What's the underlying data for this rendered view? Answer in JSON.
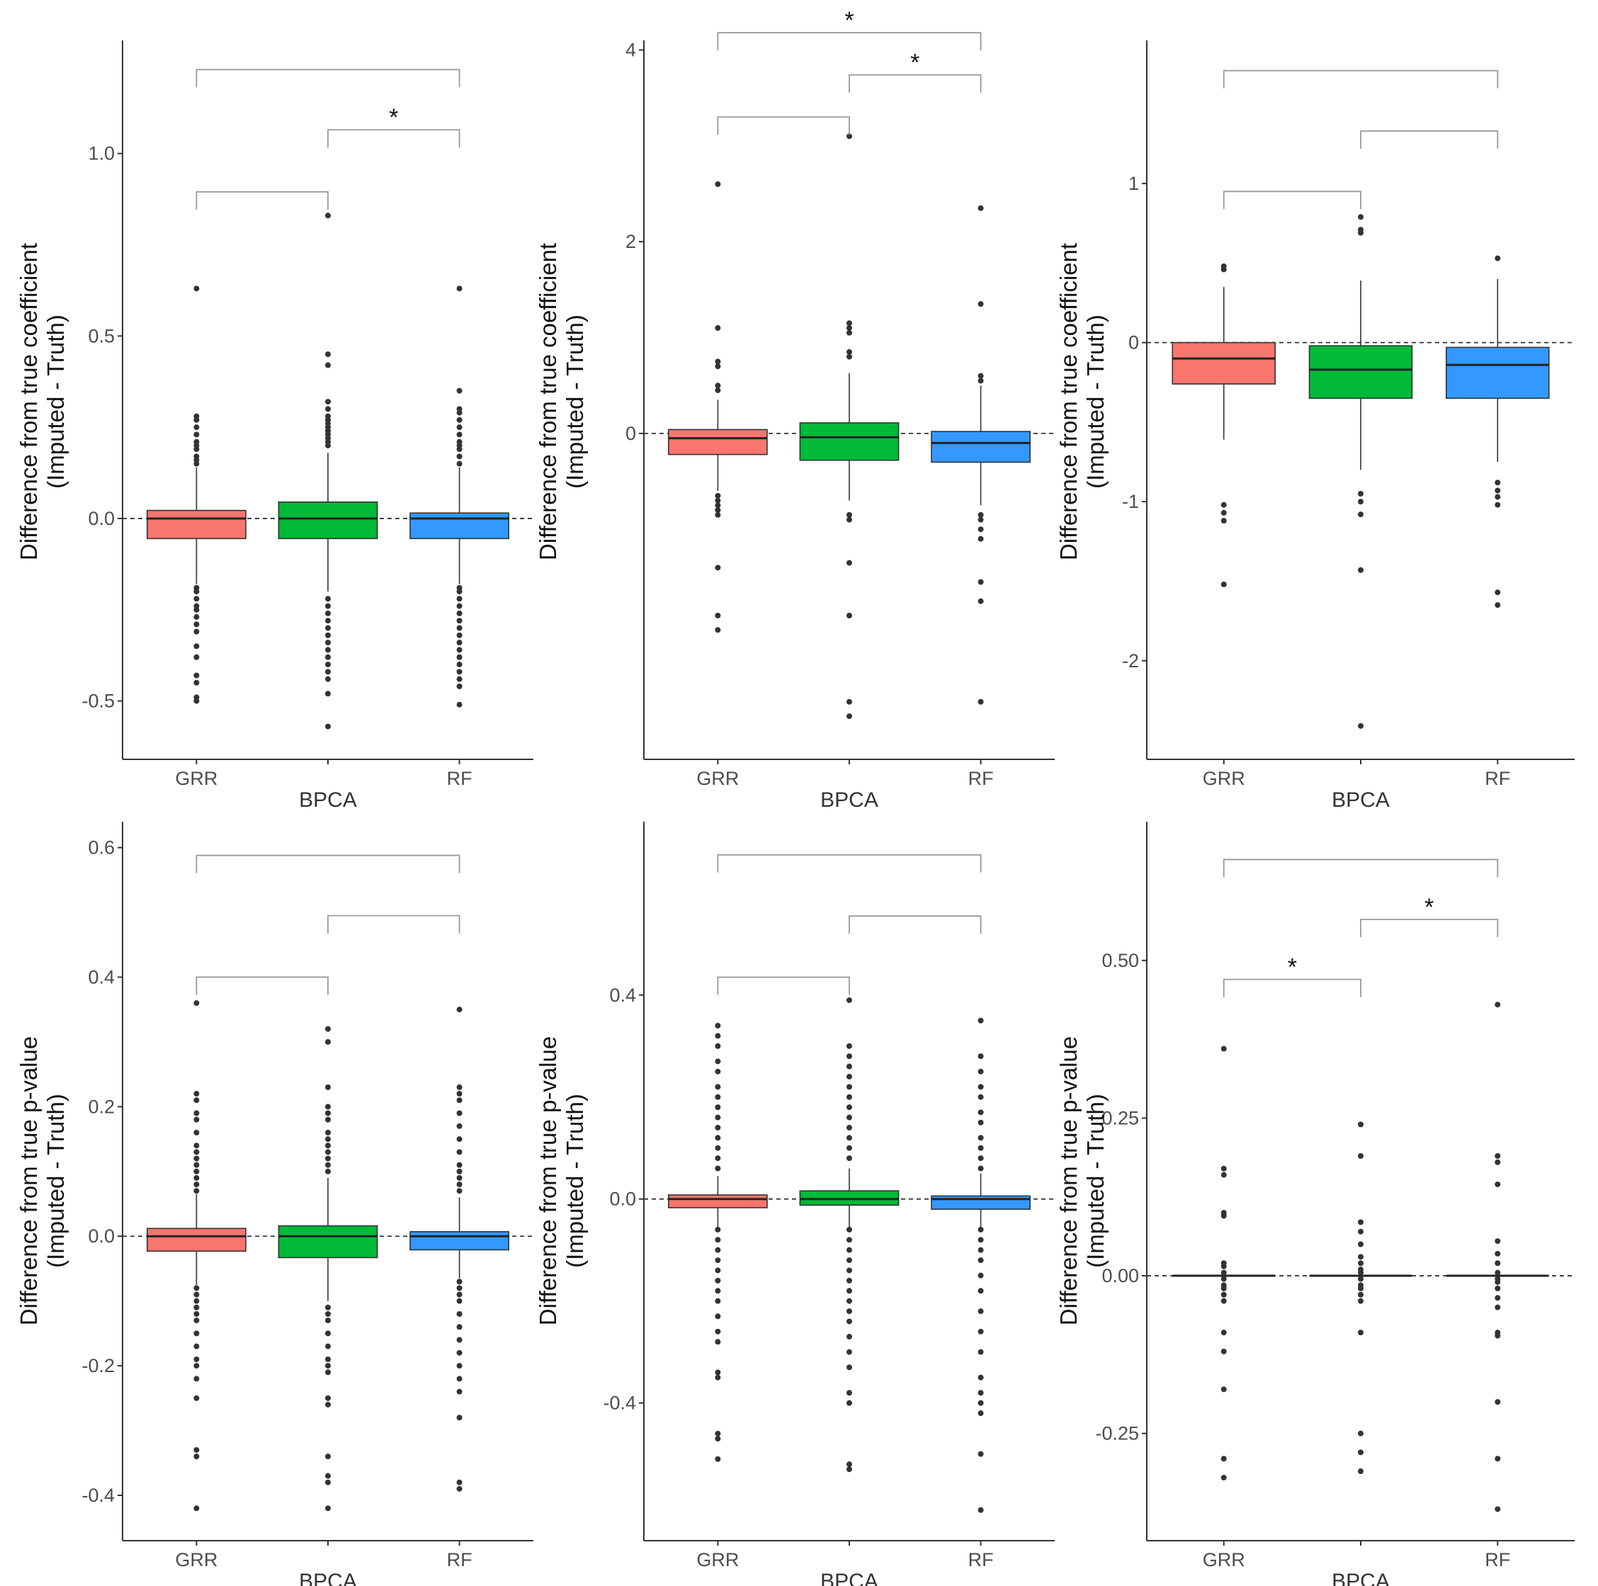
{
  "figure": {
    "categories": [
      "GRR",
      "BPCA",
      "RF"
    ],
    "colors": {
      "GRR": "#F8766D",
      "BPCA": "#00BA38",
      "RF": "#3399FF",
      "outlier": "#333333",
      "bracket": "#999999",
      "axis": "#333333",
      "reference_line": "#333333"
    }
  },
  "chart_data": [
    {
      "type": "box",
      "panel": "top-left",
      "ylabel": [
        "Difference from true coefficient",
        "(Imputed - Truth)"
      ],
      "xlabel": "BPCA",
      "categories": [
        "GRR",
        "BPCA",
        "RF"
      ],
      "ylim": [
        -0.66,
        1.31
      ],
      "yticks": [
        -0.5,
        0.0,
        0.5,
        1.0
      ],
      "ytick_labels": [
        "-0.5",
        "0.0",
        "0.5",
        "1.0"
      ],
      "reference_line": 0,
      "boxes": [
        {
          "name": "GRR",
          "q1": -0.055,
          "median": 0.0,
          "q3": 0.022,
          "whisker_low": -0.18,
          "whisker_high": 0.14,
          "outliers": [
            0.63,
            0.28,
            0.27,
            0.25,
            0.23,
            0.21,
            0.2,
            0.19,
            0.17,
            0.16,
            0.15,
            -0.19,
            -0.2,
            -0.22,
            -0.24,
            -0.25,
            -0.27,
            -0.29,
            -0.31,
            -0.35,
            -0.38,
            -0.43,
            -0.45,
            -0.49,
            -0.5
          ]
        },
        {
          "name": "BPCA",
          "q1": -0.055,
          "median": 0.0,
          "q3": 0.045,
          "whisker_low": -0.2,
          "whisker_high": 0.18,
          "outliers": [
            0.83,
            0.45,
            0.42,
            0.32,
            0.3,
            0.28,
            0.27,
            0.26,
            0.25,
            0.24,
            0.23,
            0.22,
            0.21,
            0.2,
            -0.22,
            -0.24,
            -0.26,
            -0.28,
            -0.3,
            -0.32,
            -0.34,
            -0.36,
            -0.38,
            -0.4,
            -0.42,
            -0.44,
            -0.48,
            -0.57
          ]
        },
        {
          "name": "RF",
          "q1": -0.055,
          "median": 0.0,
          "q3": 0.015,
          "whisker_low": -0.18,
          "whisker_high": 0.14,
          "outliers": [
            0.63,
            0.35,
            0.3,
            0.29,
            0.27,
            0.25,
            0.23,
            0.21,
            0.2,
            0.19,
            0.17,
            0.15,
            -0.19,
            -0.2,
            -0.22,
            -0.24,
            -0.26,
            -0.28,
            -0.3,
            -0.32,
            -0.34,
            -0.36,
            -0.38,
            -0.4,
            -0.42,
            -0.44,
            -0.46,
            -0.51
          ]
        }
      ],
      "brackets": [
        {
          "from": "GRR",
          "to": "BPCA",
          "y": 0.895,
          "label": ""
        },
        {
          "from": "BPCA",
          "to": "RF",
          "y": 1.065,
          "label": "*"
        },
        {
          "from": "GRR",
          "to": "RF",
          "y": 1.23,
          "label": ""
        }
      ]
    },
    {
      "type": "box",
      "panel": "top-middle",
      "ylabel": [
        "Difference from true coefficient",
        "(Imputed - Truth)"
      ],
      "xlabel": "BPCA",
      "categories": [
        "GRR",
        "BPCA",
        "RF"
      ],
      "ylim": [
        -3.4,
        4.1
      ],
      "yticks": [
        0,
        2,
        4
      ],
      "ytick_labels": [
        "0",
        "2",
        "4"
      ],
      "reference_line": 0,
      "boxes": [
        {
          "name": "GRR",
          "q1": -0.22,
          "median": -0.05,
          "q3": 0.04,
          "whisker_low": -0.6,
          "whisker_high": 0.35,
          "outliers": [
            2.6,
            1.1,
            0.75,
            0.7,
            0.5,
            0.45,
            -0.65,
            -0.7,
            -0.75,
            -0.8,
            -0.85,
            -1.4,
            -1.9,
            -2.05
          ]
        },
        {
          "name": "BPCA",
          "q1": -0.28,
          "median": -0.04,
          "q3": 0.11,
          "whisker_low": -0.7,
          "whisker_high": 0.63,
          "outliers": [
            3.1,
            1.15,
            1.1,
            1.05,
            0.85,
            0.8,
            -0.85,
            -0.9,
            -1.35,
            -1.9,
            -2.8,
            -2.95
          ]
        },
        {
          "name": "RF",
          "q1": -0.3,
          "median": -0.1,
          "q3": 0.02,
          "whisker_low": -0.75,
          "whisker_high": 0.5,
          "outliers": [
            2.35,
            1.35,
            0.6,
            0.55,
            -0.85,
            -0.9,
            -1.0,
            -1.1,
            -1.55,
            -1.75,
            -2.8
          ]
        }
      ],
      "brackets": [
        {
          "from": "GRR",
          "to": "BPCA",
          "y": 3.3,
          "label": ""
        },
        {
          "from": "BPCA",
          "to": "RF",
          "y": 3.74,
          "label": "*"
        },
        {
          "from": "GRR",
          "to": "RF",
          "y": 4.18,
          "label": "*"
        }
      ]
    },
    {
      "type": "box",
      "panel": "top-right",
      "ylabel": [
        "Difference from true coefficient",
        "(Imputed - Truth)"
      ],
      "xlabel": "BPCA",
      "categories": [
        "GRR",
        "BPCA",
        "RF"
      ],
      "ylim": [
        -2.62,
        1.9
      ],
      "yticks": [
        -2,
        -1,
        0,
        1
      ],
      "ytick_labels": [
        "-2",
        "-1",
        "0",
        "1"
      ],
      "reference_line": 0,
      "boxes": [
        {
          "name": "GRR",
          "q1": -0.26,
          "median": -0.1,
          "q3": 0.0,
          "whisker_low": -0.61,
          "whisker_high": 0.35,
          "outliers": [
            0.48,
            0.46,
            -1.02,
            -1.07,
            -1.12,
            -1.52
          ]
        },
        {
          "name": "BPCA",
          "q1": -0.35,
          "median": -0.17,
          "q3": -0.02,
          "whisker_low": -0.8,
          "whisker_high": 0.39,
          "outliers": [
            0.79,
            0.71,
            0.69,
            -0.95,
            -1.0,
            -1.08,
            -1.43,
            -2.41
          ]
        },
        {
          "name": "RF",
          "q1": -0.35,
          "median": -0.14,
          "q3": -0.03,
          "whisker_low": -0.75,
          "whisker_high": 0.4,
          "outliers": [
            0.53,
            -0.88,
            -0.93,
            -0.97,
            -1.02,
            -1.57,
            -1.65
          ]
        }
      ],
      "brackets": [
        {
          "from": "GRR",
          "to": "BPCA",
          "y": 0.95,
          "label": ""
        },
        {
          "from": "BPCA",
          "to": "RF",
          "y": 1.33,
          "label": ""
        },
        {
          "from": "GRR",
          "to": "RF",
          "y": 1.71,
          "label": ""
        }
      ]
    },
    {
      "type": "box",
      "panel": "bottom-left",
      "ylabel": [
        "Difference from true p-value",
        "(Imputed - Truth)"
      ],
      "xlabel": "BPCA",
      "categories": [
        "GRR",
        "BPCA",
        "RF"
      ],
      "ylim": [
        -0.47,
        0.64
      ],
      "yticks": [
        -0.4,
        -0.2,
        0.0,
        0.2,
        0.4,
        0.6
      ],
      "ytick_labels": [
        "-0.4",
        "-0.2",
        "0.0",
        "0.2",
        "0.4",
        "0.6"
      ],
      "reference_line": 0,
      "boxes": [
        {
          "name": "GRR",
          "q1": -0.023,
          "median": 0.0,
          "q3": 0.012,
          "whisker_low": -0.075,
          "whisker_high": 0.065,
          "outliers": [
            0.36,
            0.22,
            0.21,
            0.19,
            0.18,
            0.16,
            0.14,
            0.13,
            0.12,
            0.11,
            0.1,
            0.09,
            0.08,
            0.07,
            -0.08,
            -0.09,
            -0.1,
            -0.11,
            -0.12,
            -0.13,
            -0.15,
            -0.17,
            -0.19,
            -0.2,
            -0.22,
            -0.25,
            -0.33,
            -0.34,
            -0.42
          ]
        },
        {
          "name": "BPCA",
          "q1": -0.033,
          "median": 0.0,
          "q3": 0.016,
          "whisker_low": -0.1,
          "whisker_high": 0.09,
          "outliers": [
            0.32,
            0.3,
            0.23,
            0.2,
            0.19,
            0.18,
            0.16,
            0.15,
            0.14,
            0.13,
            0.12,
            0.11,
            0.1,
            -0.11,
            -0.12,
            -0.13,
            -0.15,
            -0.17,
            -0.19,
            -0.2,
            -0.21,
            -0.25,
            -0.26,
            -0.34,
            -0.37,
            -0.38,
            -0.42
          ]
        },
        {
          "name": "RF",
          "q1": -0.021,
          "median": 0.0,
          "q3": 0.007,
          "whisker_low": -0.065,
          "whisker_high": 0.06,
          "outliers": [
            0.35,
            0.23,
            0.22,
            0.21,
            0.19,
            0.17,
            0.15,
            0.13,
            0.11,
            0.1,
            0.09,
            0.08,
            0.07,
            -0.07,
            -0.08,
            -0.09,
            -0.1,
            -0.12,
            -0.14,
            -0.16,
            -0.18,
            -0.2,
            -0.22,
            -0.24,
            -0.28,
            -0.38,
            -0.39
          ]
        }
      ],
      "brackets": [
        {
          "from": "GRR",
          "to": "BPCA",
          "y": 0.4,
          "label": ""
        },
        {
          "from": "BPCA",
          "to": "RF",
          "y": 0.495,
          "label": ""
        },
        {
          "from": "GRR",
          "to": "RF",
          "y": 0.588,
          "label": ""
        }
      ]
    },
    {
      "type": "box",
      "panel": "bottom-middle",
      "ylabel": [
        "Difference from true p-value",
        "(Imputed - Truth)"
      ],
      "xlabel": "BPCA",
      "categories": [
        "GRR",
        "BPCA",
        "RF"
      ],
      "ylim": [
        -0.67,
        0.74
      ],
      "yticks": [
        -0.4,
        0.0,
        0.4
      ],
      "ytick_labels": [
        "-0.4",
        "0.0",
        "0.4"
      ],
      "reference_line": 0,
      "boxes": [
        {
          "name": "GRR",
          "q1": -0.017,
          "median": 0.0,
          "q3": 0.008,
          "whisker_low": -0.055,
          "whisker_high": 0.045,
          "outliers": [
            0.34,
            0.32,
            0.3,
            0.27,
            0.25,
            0.22,
            0.2,
            0.18,
            0.16,
            0.14,
            0.12,
            0.1,
            0.08,
            0.06,
            -0.06,
            -0.08,
            -0.1,
            -0.12,
            -0.14,
            -0.16,
            -0.18,
            -0.2,
            -0.23,
            -0.26,
            -0.28,
            -0.34,
            -0.35,
            -0.46,
            -0.47,
            -0.51
          ]
        },
        {
          "name": "BPCA",
          "q1": -0.012,
          "median": 0.0,
          "q3": 0.016,
          "whisker_low": -0.055,
          "whisker_high": 0.06,
          "outliers": [
            0.39,
            0.3,
            0.28,
            0.26,
            0.24,
            0.22,
            0.2,
            0.18,
            0.16,
            0.14,
            0.12,
            0.1,
            0.08,
            -0.06,
            -0.08,
            -0.1,
            -0.12,
            -0.14,
            -0.16,
            -0.18,
            -0.2,
            -0.22,
            -0.24,
            -0.27,
            -0.3,
            -0.33,
            -0.38,
            -0.4,
            -0.52,
            -0.53
          ]
        },
        {
          "name": "RF",
          "q1": -0.02,
          "median": 0.0,
          "q3": 0.006,
          "whisker_low": -0.06,
          "whisker_high": 0.05,
          "outliers": [
            0.35,
            0.28,
            0.25,
            0.22,
            0.2,
            0.17,
            0.15,
            0.12,
            0.1,
            0.08,
            0.06,
            -0.06,
            -0.08,
            -0.1,
            -0.12,
            -0.15,
            -0.18,
            -0.22,
            -0.26,
            -0.3,
            -0.35,
            -0.38,
            -0.4,
            -0.42,
            -0.5,
            -0.61
          ]
        }
      ],
      "brackets": [
        {
          "from": "GRR",
          "to": "BPCA",
          "y": 0.435,
          "label": ""
        },
        {
          "from": "BPCA",
          "to": "RF",
          "y": 0.555,
          "label": ""
        },
        {
          "from": "GRR",
          "to": "RF",
          "y": 0.675,
          "label": ""
        }
      ]
    },
    {
      "type": "box",
      "panel": "bottom-right",
      "ylabel": [
        "Difference from true p-value",
        "(Imputed - Truth)"
      ],
      "xlabel": "BPCA",
      "categories": [
        "GRR",
        "BPCA",
        "RF"
      ],
      "ylim": [
        -0.42,
        0.72
      ],
      "yticks": [
        -0.25,
        0.0,
        0.25,
        0.5
      ],
      "ytick_labels": [
        "-0.25",
        "0.00",
        "0.25",
        "0.50"
      ],
      "reference_line": 0,
      "boxes": [
        {
          "name": "GRR",
          "q1": 0.0,
          "median": 0.0,
          "q3": 0.0,
          "whisker_low": 0.0,
          "whisker_high": 0.0,
          "outliers": [
            0.36,
            0.17,
            0.16,
            0.1,
            0.095,
            0.02,
            0.015,
            0.005,
            -0.005,
            -0.015,
            -0.02,
            -0.03,
            -0.04,
            -0.09,
            -0.12,
            -0.18,
            -0.29,
            -0.32
          ]
        },
        {
          "name": "BPCA",
          "q1": 0.0,
          "median": 0.0,
          "q3": 0.0,
          "whisker_low": 0.0,
          "whisker_high": 0.0,
          "outliers": [
            0.24,
            0.19,
            0.085,
            0.07,
            0.05,
            0.03,
            0.02,
            0.01,
            0.005,
            -0.005,
            -0.015,
            -0.02,
            -0.03,
            -0.04,
            -0.09,
            -0.25,
            -0.28,
            -0.31
          ]
        },
        {
          "name": "RF",
          "q1": 0.0,
          "median": 0.0,
          "q3": 0.0,
          "whisker_low": 0.0,
          "whisker_high": 0.0,
          "outliers": [
            0.43,
            0.19,
            0.18,
            0.145,
            0.055,
            0.035,
            0.02,
            0.005,
            -0.005,
            -0.01,
            -0.02,
            -0.035,
            -0.05,
            -0.09,
            -0.095,
            -0.2,
            -0.29,
            -0.37
          ]
        }
      ],
      "brackets": [
        {
          "from": "GRR",
          "to": "BPCA",
          "y": 0.47,
          "label": "*"
        },
        {
          "from": "BPCA",
          "to": "RF",
          "y": 0.565,
          "label": "*"
        },
        {
          "from": "GRR",
          "to": "RF",
          "y": 0.66,
          "label": ""
        }
      ]
    }
  ]
}
